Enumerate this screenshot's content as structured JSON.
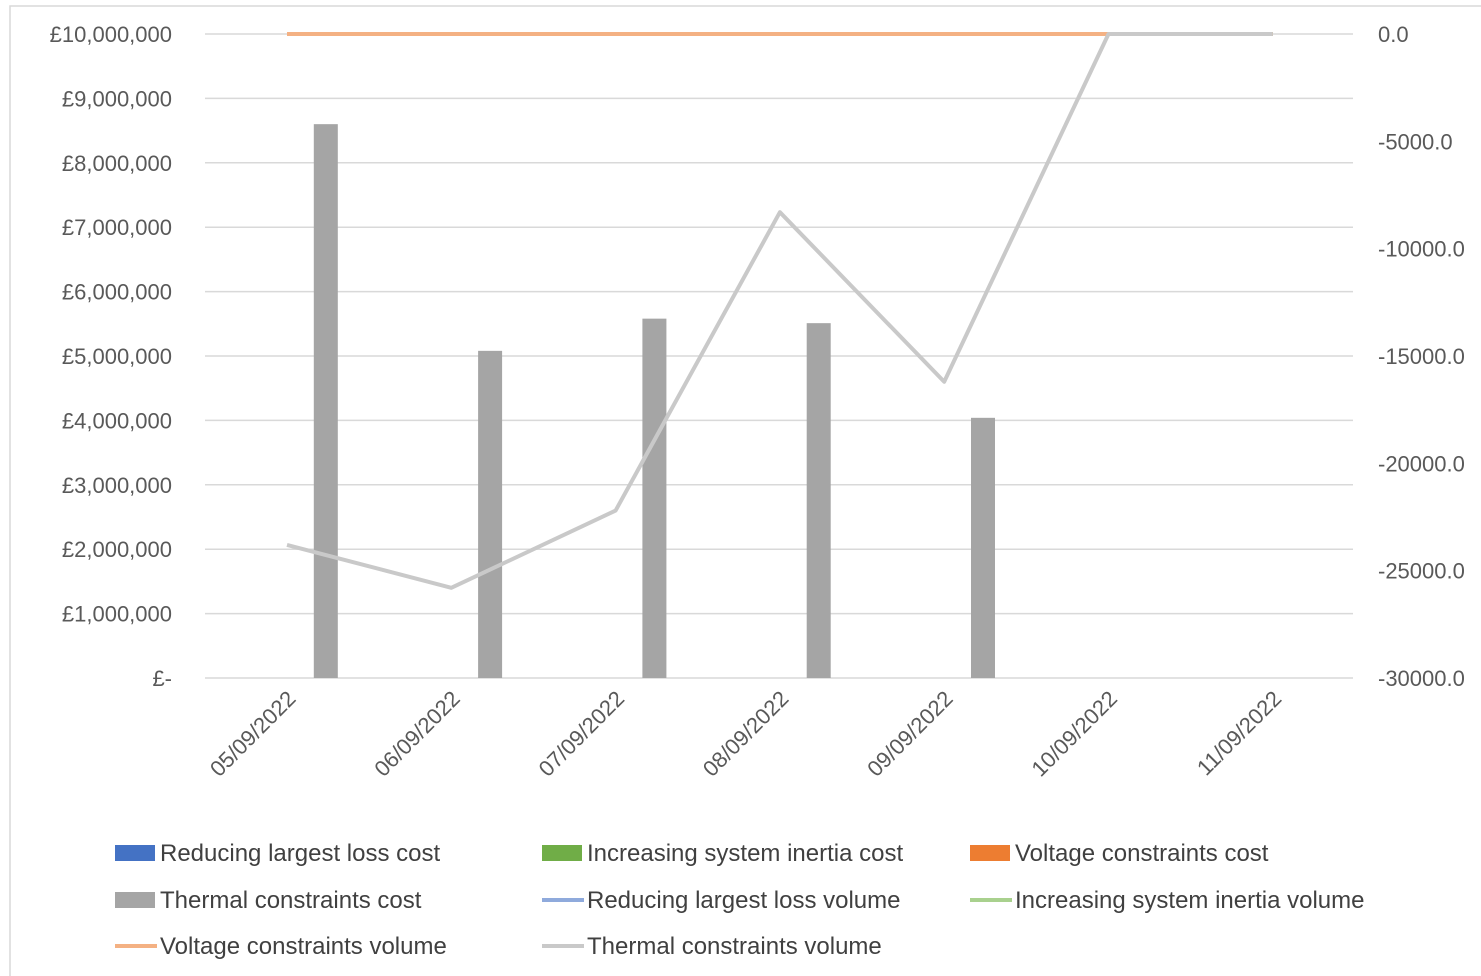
{
  "chart_data": {
    "type": "bar",
    "categories": [
      "05/09/2022",
      "06/09/2022",
      "07/09/2022",
      "08/09/2022",
      "09/09/2022",
      "10/09/2022",
      "11/09/2022"
    ],
    "left_axis": {
      "ylim": [
        0,
        10000000
      ],
      "tick_values": [
        0,
        1000000,
        2000000,
        3000000,
        4000000,
        5000000,
        6000000,
        7000000,
        8000000,
        9000000,
        10000000
      ],
      "tick_labels": [
        "£-",
        "£1,000,000",
        "£2,000,000",
        "£3,000,000",
        "£4,000,000",
        "£5,000,000",
        "£6,000,000",
        "£7,000,000",
        "£8,000,000",
        "£9,000,000",
        "£10,000,000"
      ]
    },
    "right_axis": {
      "ylim": [
        -30000,
        0
      ],
      "tick_values": [
        -30000,
        -25000,
        -20000,
        -15000,
        -10000,
        -5000,
        0
      ],
      "tick_labels": [
        "-30000.0",
        "-25000.0",
        "-20000.0",
        "-15000.0",
        "-10000.0",
        "-5000.0",
        "0.0"
      ]
    },
    "grid": true,
    "legend_position": "bottom",
    "bar_series": [
      {
        "name": "Reducing largest loss cost",
        "color": "#4472C4",
        "values": [
          0,
          0,
          0,
          0,
          0,
          0,
          0
        ]
      },
      {
        "name": "Increasing system inertia cost",
        "color": "#70AD47",
        "values": [
          0,
          0,
          0,
          0,
          0,
          0,
          0
        ]
      },
      {
        "name": "Voltage constraints cost",
        "color": "#ED7D31",
        "values": [
          0,
          0,
          0,
          0,
          0,
          0,
          0
        ]
      },
      {
        "name": "Thermal constraints cost",
        "color": "#A5A5A5",
        "values": [
          8600000,
          5080000,
          5580000,
          5510000,
          4040000,
          0,
          0
        ]
      }
    ],
    "line_series": [
      {
        "name": "Reducing largest loss volume",
        "color": "#8FAADC",
        "values": [
          0,
          0,
          0,
          0,
          0,
          0,
          0
        ]
      },
      {
        "name": "Increasing system inertia volume",
        "color": "#A9D18E",
        "values": [
          0,
          0,
          0,
          0,
          0,
          0,
          0
        ]
      },
      {
        "name": "Voltage constraints volume",
        "color": "#F4B183",
        "values": [
          0,
          0,
          0,
          0,
          0,
          0,
          0
        ]
      },
      {
        "name": "Thermal constraints volume",
        "color": "#C9C9C9",
        "values": [
          -23800,
          -25800,
          -22200,
          -8300,
          -16200,
          0,
          0
        ]
      }
    ],
    "legend": [
      {
        "label": "Reducing largest loss cost",
        "kind": "bar",
        "color": "#4472C4"
      },
      {
        "label": "Increasing system inertia cost",
        "kind": "bar",
        "color": "#70AD47"
      },
      {
        "label": "Voltage constraints cost",
        "kind": "bar",
        "color": "#ED7D31"
      },
      {
        "label": "Thermal constraints cost",
        "kind": "bar",
        "color": "#A5A5A5"
      },
      {
        "label": "Reducing largest loss volume",
        "kind": "line",
        "color": "#8FAADC"
      },
      {
        "label": "Increasing system inertia volume",
        "kind": "line",
        "color": "#A9D18E"
      },
      {
        "label": "Voltage constraints volume",
        "kind": "line",
        "color": "#F4B183"
      },
      {
        "label": "Thermal constraints volume",
        "kind": "line",
        "color": "#C9C9C9"
      }
    ]
  }
}
